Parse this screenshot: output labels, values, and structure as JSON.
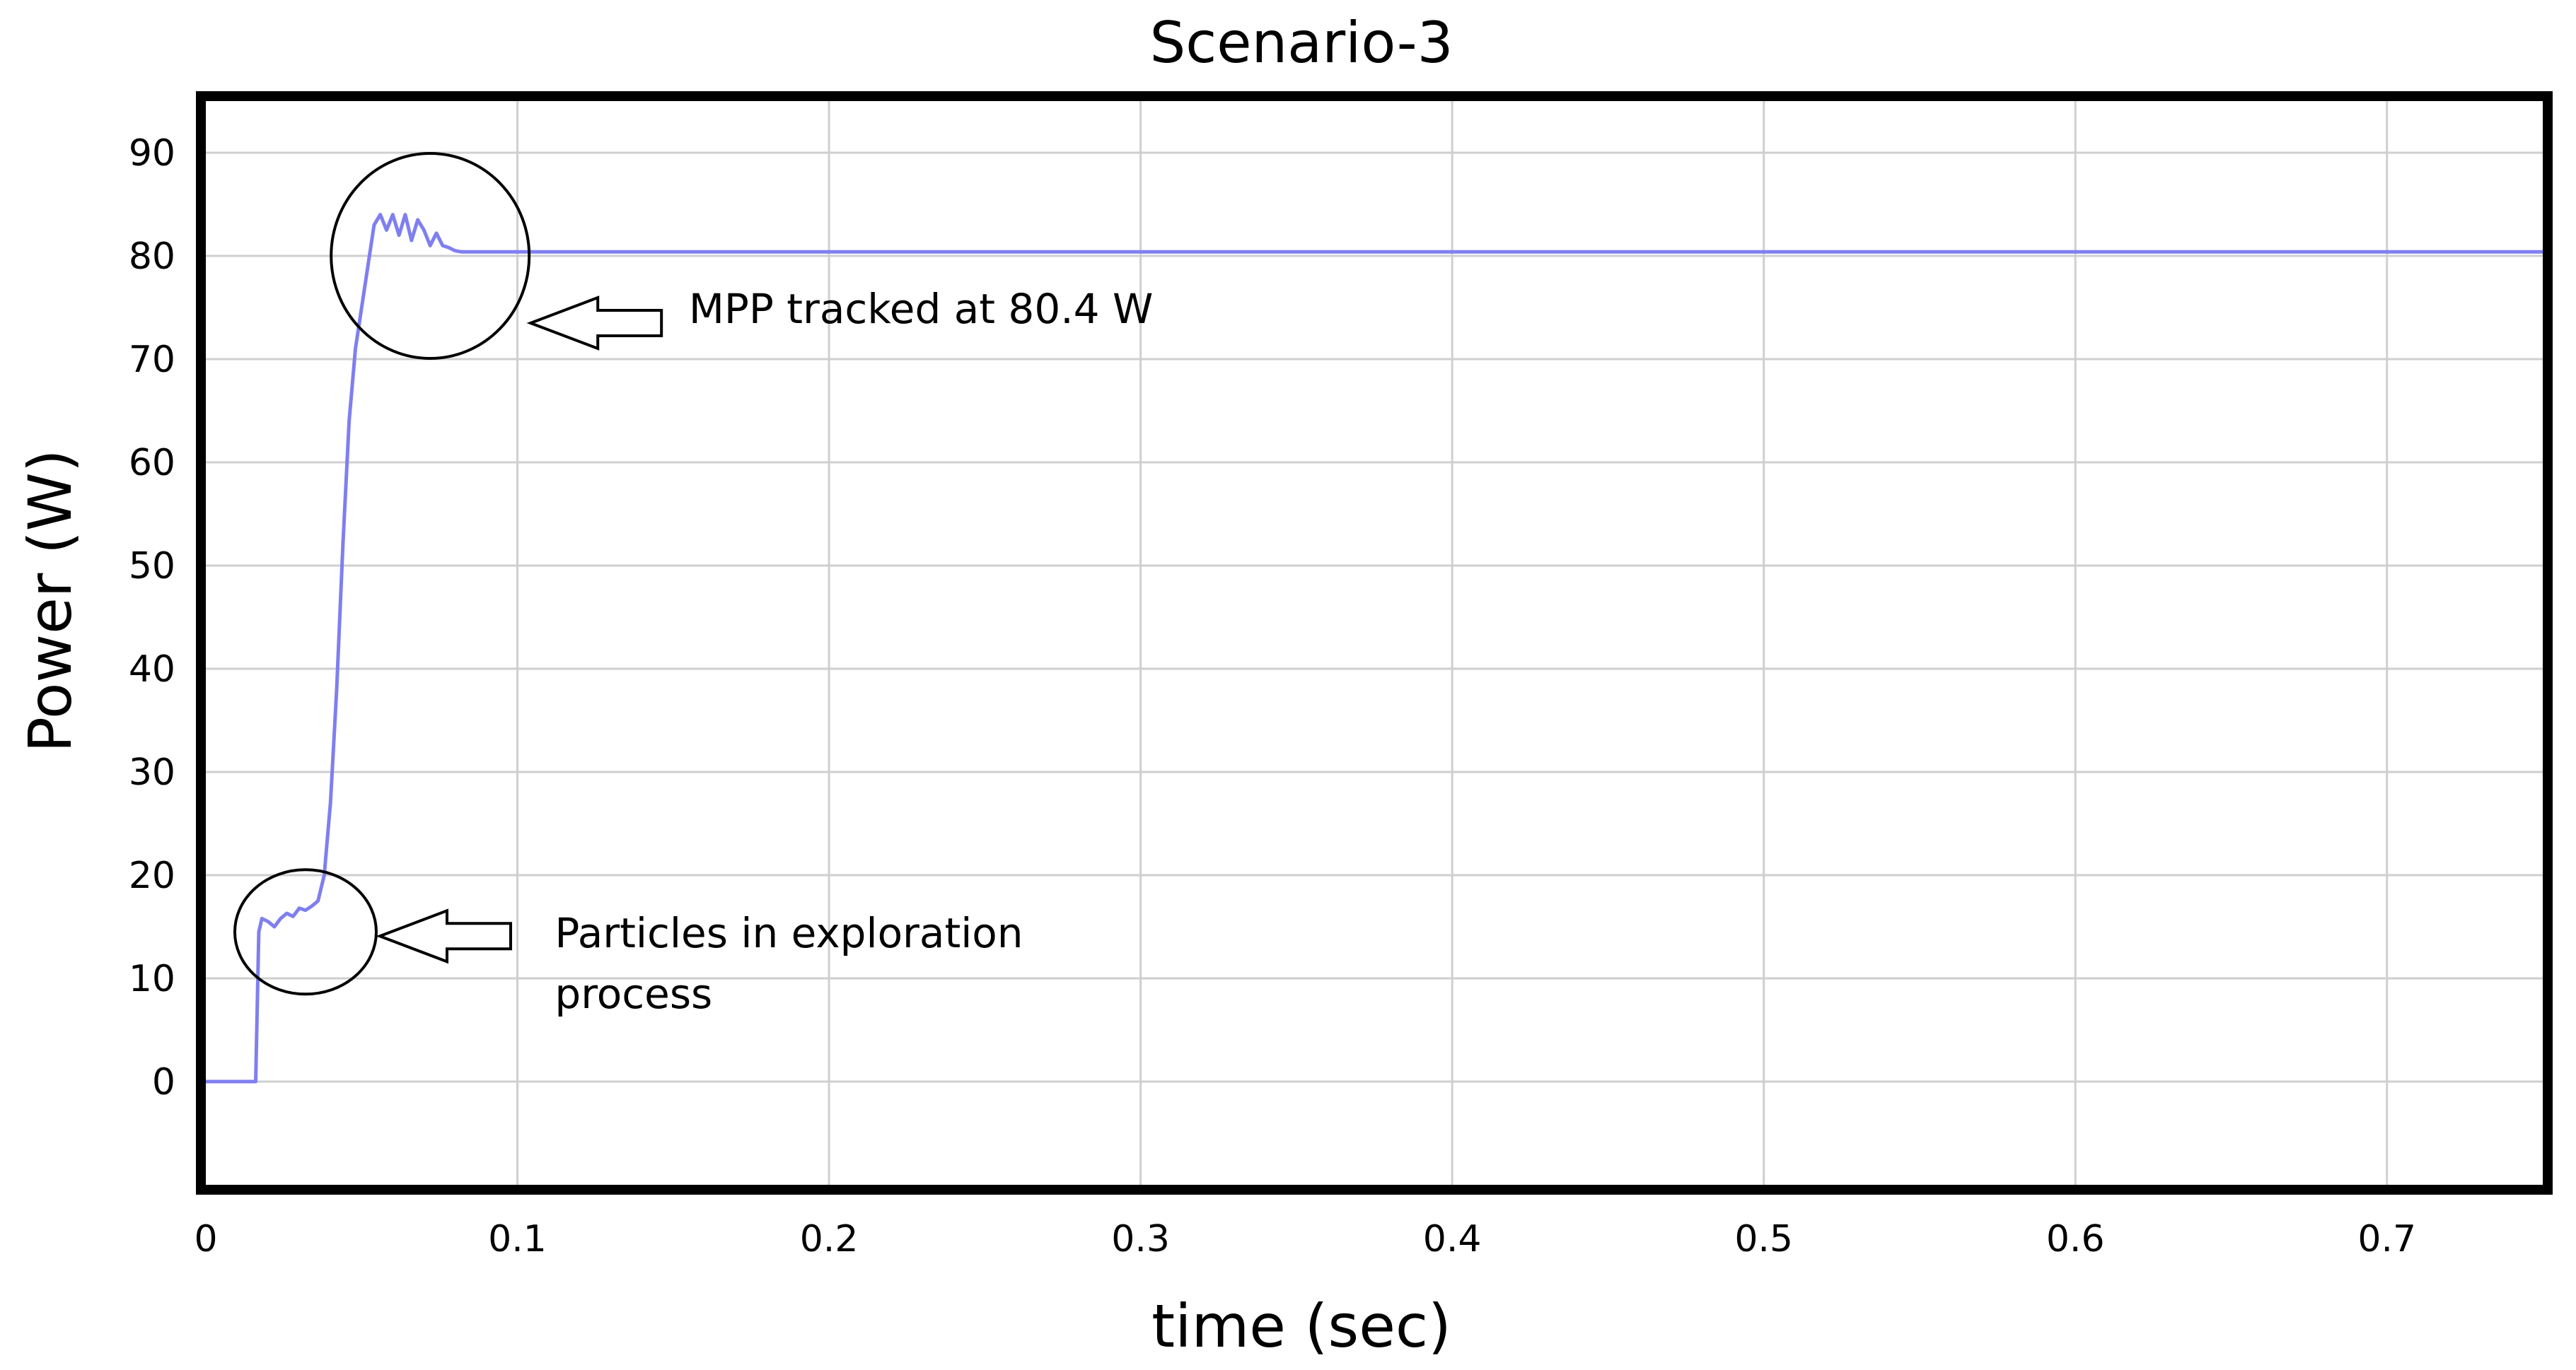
{
  "chart_data": {
    "type": "line",
    "title": "Scenario-3",
    "xlabel": "time (sec)",
    "ylabel": "Power (W)",
    "xlim": [
      0,
      0.75
    ],
    "ylim": [
      -10,
      95
    ],
    "xticks": [
      0,
      0.1,
      0.2,
      0.3,
      0.4,
      0.5,
      0.6,
      0.7
    ],
    "xtick_labels": [
      "0",
      "0.1",
      "0.2",
      "0.3",
      "0.4",
      "0.5",
      "0.6",
      "0.7"
    ],
    "yticks": [
      0,
      10,
      20,
      30,
      40,
      50,
      60,
      70,
      80,
      90
    ],
    "ytick_labels": [
      "0",
      "10",
      "20",
      "30",
      "40",
      "50",
      "60",
      "70",
      "80",
      "90"
    ],
    "grid": true,
    "series": [
      {
        "color": "#7f7ff0",
        "x": [
          0,
          0.016,
          0.017,
          0.018,
          0.02,
          0.022,
          0.024,
          0.026,
          0.028,
          0.03,
          0.032,
          0.034,
          0.036,
          0.038,
          0.04,
          0.042,
          0.044,
          0.046,
          0.048,
          0.05,
          0.052,
          0.054,
          0.056,
          0.058,
          0.06,
          0.062,
          0.064,
          0.066,
          0.068,
          0.07,
          0.072,
          0.074,
          0.076,
          0.078,
          0.08,
          0.082,
          0.084,
          0.1,
          0.2,
          0.3,
          0.4,
          0.5,
          0.6,
          0.7,
          0.75
        ],
        "y": [
          0,
          0,
          14.5,
          15.8,
          15.5,
          15.0,
          15.8,
          16.3,
          16.0,
          16.8,
          16.6,
          17.0,
          17.5,
          20.0,
          27.0,
          38.0,
          52.0,
          64.0,
          71.0,
          75.0,
          79.0,
          83.0,
          84.0,
          82.5,
          84.0,
          82.0,
          84.0,
          81.5,
          83.5,
          82.5,
          81.0,
          82.2,
          81.0,
          80.8,
          80.5,
          80.4,
          80.4,
          80.4,
          80.4,
          80.4,
          80.4,
          80.4,
          80.4,
          80.4,
          80.4
        ]
      }
    ],
    "annotations": [
      {
        "text": "MPP tracked at 80.4 W",
        "x": 0.155,
        "y": 73.5,
        "ring_x": 0.072,
        "ring_y": 80.0
      },
      {
        "text_lines": [
          "Particles in exploration",
          "process"
        ],
        "x": 0.112,
        "y": 13.0,
        "ring_x": 0.032,
        "ring_y": 14.5
      }
    ]
  }
}
